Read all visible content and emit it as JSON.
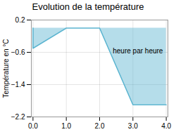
{
  "chart_data": {
    "type": "area",
    "title": "Evolution de la température",
    "xlabel": "heure par heure",
    "ylabel": "Température en °C",
    "x": [
      0,
      0,
      1,
      2,
      3,
      4
    ],
    "values": [
      0,
      -0.5,
      0,
      0,
      -1.9,
      -1.9
    ],
    "color": "#5ab4d0",
    "xlim": [
      -0.05,
      4.05
    ],
    "ylim": [
      -2.2,
      0.2
    ],
    "xticks": [
      0,
      1,
      2,
      3,
      4
    ],
    "yticks": [
      0.2,
      -0.6,
      -1.4,
      -2.2
    ],
    "grid": true
  }
}
